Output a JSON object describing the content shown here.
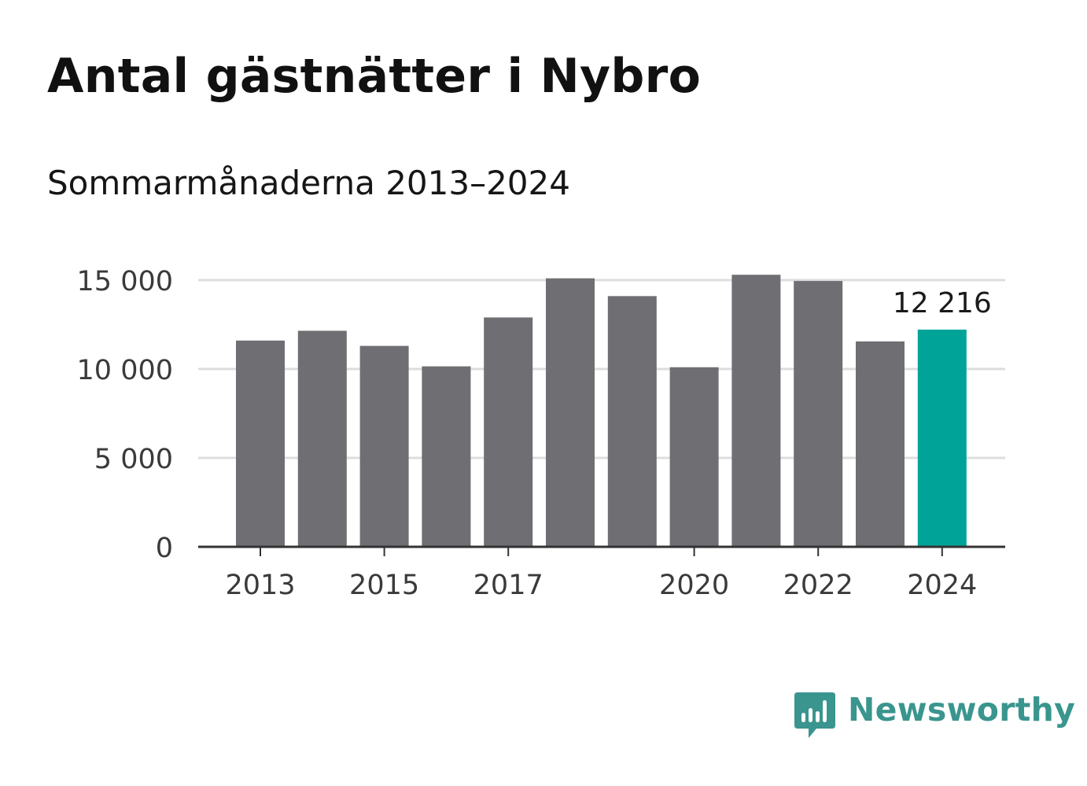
{
  "title": "Antal gästnätter i Nybro",
  "subtitle": "Sommarmånaderna 2013–2024",
  "brand": {
    "name": "Newsworthy",
    "icon": "newsworthy-logo-icon",
    "color": "#3a958e"
  },
  "colors": {
    "bar": "#6f6e73",
    "highlight": "#00a398",
    "grid": "#dddddd",
    "axis": "#333333"
  },
  "chart_data": {
    "type": "bar",
    "categories": [
      "2013",
      "2014",
      "2015",
      "2016",
      "2017",
      "2018",
      "2019",
      "2020",
      "2021",
      "2022",
      "2023",
      "2024"
    ],
    "values": [
      11600,
      12150,
      11300,
      10150,
      12900,
      15100,
      14100,
      10100,
      15300,
      14950,
      11550,
      12216
    ],
    "tick_labels_x": [
      "2013",
      "2015",
      "2017",
      "2020",
      "2022",
      "2024"
    ],
    "yticks": [
      0,
      5000,
      10000,
      15000
    ],
    "ytick_labels": [
      "0",
      "5 000",
      "10 000",
      "15 000"
    ],
    "ylim": [
      0,
      15000
    ],
    "highlight_index": 11,
    "annotation": "12 216",
    "grid": true
  }
}
